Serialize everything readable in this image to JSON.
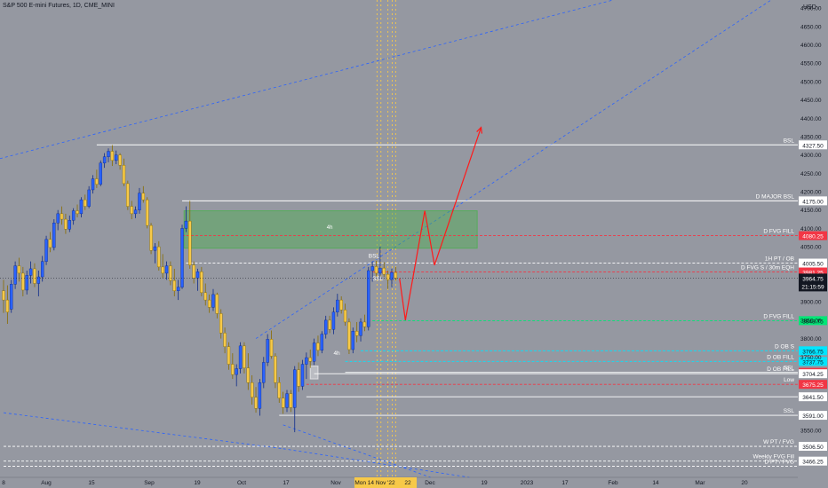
{
  "header": {
    "title": "S&P 500 E-mini Futures, 1D, CME_MINI"
  },
  "chart_data": {
    "type": "candlestick",
    "title": "S&P 500 E-mini Futures, 1D, CME_MINI",
    "currency_label": "USD",
    "ylim": [
      3422,
      4722
    ],
    "price_ticks": [
      4700,
      4650,
      4600,
      4550,
      4500,
      4450,
      4400,
      4350,
      4300,
      4250,
      4200,
      4150,
      4100,
      4050,
      3900,
      3850,
      3800,
      3750,
      3550
    ],
    "time_axis": {
      "labels": [
        "8",
        "Aug",
        "15",
        "Sep",
        "19",
        "Oct",
        "17",
        "Nov",
        "Dec",
        "19",
        "2023",
        "17",
        "Feb",
        "14",
        "Mar",
        "20"
      ],
      "highlighted_label": "Mon 14 Nov '22",
      "highlighted_suffix": "22"
    },
    "last_price": "3964.75",
    "countdown": "21:15:59",
    "candles": [
      {
        "o": 3930,
        "h": 3960,
        "l": 3870,
        "c": 3905
      },
      {
        "o": 3905,
        "h": 3945,
        "l": 3840,
        "c": 3872
      },
      {
        "o": 3880,
        "h": 3960,
        "l": 3870,
        "c": 3948
      },
      {
        "o": 3948,
        "h": 4010,
        "l": 3935,
        "c": 3998
      },
      {
        "o": 3998,
        "h": 4020,
        "l": 3955,
        "c": 3978
      },
      {
        "o": 3978,
        "h": 3995,
        "l": 3915,
        "c": 3932
      },
      {
        "o": 3932,
        "h": 3985,
        "l": 3920,
        "c": 3972
      },
      {
        "o": 3972,
        "h": 4010,
        "l": 3950,
        "c": 3990
      },
      {
        "o": 3990,
        "h": 4005,
        "l": 3940,
        "c": 3950
      },
      {
        "o": 3950,
        "h": 3985,
        "l": 3915,
        "c": 3968
      },
      {
        "o": 3968,
        "h": 4025,
        "l": 3955,
        "c": 4010
      },
      {
        "o": 4010,
        "h": 4080,
        "l": 4000,
        "c": 4070
      },
      {
        "o": 4070,
        "h": 4090,
        "l": 4035,
        "c": 4048
      },
      {
        "o": 4048,
        "h": 4125,
        "l": 4040,
        "c": 4115
      },
      {
        "o": 4115,
        "h": 4150,
        "l": 4095,
        "c": 4140
      },
      {
        "o": 4140,
        "h": 4160,
        "l": 4110,
        "c": 4125
      },
      {
        "o": 4125,
        "h": 4140,
        "l": 4085,
        "c": 4098
      },
      {
        "o": 4098,
        "h": 4135,
        "l": 4090,
        "c": 4122
      },
      {
        "o": 4122,
        "h": 4155,
        "l": 4110,
        "c": 4148
      },
      {
        "o": 4148,
        "h": 4165,
        "l": 4130,
        "c": 4140
      },
      {
        "o": 4140,
        "h": 4185,
        "l": 4130,
        "c": 4178
      },
      {
        "o": 4178,
        "h": 4192,
        "l": 4150,
        "c": 4160
      },
      {
        "o": 4160,
        "h": 4215,
        "l": 4155,
        "c": 4205
      },
      {
        "o": 4205,
        "h": 4245,
        "l": 4195,
        "c": 4235
      },
      {
        "o": 4235,
        "h": 4260,
        "l": 4210,
        "c": 4220
      },
      {
        "o": 4220,
        "h": 4285,
        "l": 4215,
        "c": 4278
      },
      {
        "o": 4278,
        "h": 4305,
        "l": 4265,
        "c": 4295
      },
      {
        "o": 4295,
        "h": 4318,
        "l": 4280,
        "c": 4310
      },
      {
        "o": 4310,
        "h": 4327,
        "l": 4270,
        "c": 4285
      },
      {
        "o": 4285,
        "h": 4312,
        "l": 4275,
        "c": 4300
      },
      {
        "o": 4300,
        "h": 4305,
        "l": 4260,
        "c": 4272
      },
      {
        "o": 4272,
        "h": 4290,
        "l": 4215,
        "c": 4222
      },
      {
        "o": 4222,
        "h": 4230,
        "l": 4150,
        "c": 4160
      },
      {
        "o": 4160,
        "h": 4175,
        "l": 4125,
        "c": 4140
      },
      {
        "o": 4140,
        "h": 4160,
        "l": 4128,
        "c": 4150
      },
      {
        "o": 4150,
        "h": 4210,
        "l": 4140,
        "c": 4196
      },
      {
        "o": 4196,
        "h": 4215,
        "l": 4170,
        "c": 4178
      },
      {
        "o": 4178,
        "h": 4185,
        "l": 4100,
        "c": 4108
      },
      {
        "o": 4108,
        "h": 4115,
        "l": 4030,
        "c": 4040
      },
      {
        "o": 4040,
        "h": 4060,
        "l": 4005,
        "c": 4050
      },
      {
        "o": 4050,
        "h": 4065,
        "l": 3985,
        "c": 3995
      },
      {
        "o": 3995,
        "h": 4030,
        "l": 3965,
        "c": 3978
      },
      {
        "o": 3978,
        "h": 4010,
        "l": 3960,
        "c": 3998
      },
      {
        "o": 3998,
        "h": 4010,
        "l": 3945,
        "c": 3958
      },
      {
        "o": 3958,
        "h": 3990,
        "l": 3915,
        "c": 3930
      },
      {
        "o": 3930,
        "h": 3960,
        "l": 3905,
        "c": 3940
      },
      {
        "o": 3940,
        "h": 4110,
        "l": 3935,
        "c": 4100
      },
      {
        "o": 4100,
        "h": 4160,
        "l": 4090,
        "c": 4120
      },
      {
        "o": 4120,
        "h": 4175,
        "l": 3990,
        "c": 4000
      },
      {
        "o": 4000,
        "h": 4010,
        "l": 3950,
        "c": 3965
      },
      {
        "o": 3965,
        "h": 3990,
        "l": 3930,
        "c": 3982
      },
      {
        "o": 3982,
        "h": 3995,
        "l": 3915,
        "c": 3925
      },
      {
        "o": 3925,
        "h": 3950,
        "l": 3890,
        "c": 3905
      },
      {
        "o": 3905,
        "h": 3920,
        "l": 3870,
        "c": 3885
      },
      {
        "o": 3885,
        "h": 3935,
        "l": 3875,
        "c": 3920
      },
      {
        "o": 3920,
        "h": 3925,
        "l": 3855,
        "c": 3868
      },
      {
        "o": 3868,
        "h": 3880,
        "l": 3800,
        "c": 3815
      },
      {
        "o": 3815,
        "h": 3830,
        "l": 3760,
        "c": 3778
      },
      {
        "o": 3778,
        "h": 3790,
        "l": 3715,
        "c": 3730
      },
      {
        "o": 3730,
        "h": 3760,
        "l": 3690,
        "c": 3702
      },
      {
        "o": 3702,
        "h": 3730,
        "l": 3670,
        "c": 3718
      },
      {
        "o": 3718,
        "h": 3790,
        "l": 3705,
        "c": 3780
      },
      {
        "o": 3780,
        "h": 3790,
        "l": 3705,
        "c": 3720
      },
      {
        "o": 3720,
        "h": 3760,
        "l": 3660,
        "c": 3680
      },
      {
        "o": 3680,
        "h": 3700,
        "l": 3620,
        "c": 3640
      },
      {
        "o": 3640,
        "h": 3668,
        "l": 3598,
        "c": 3610
      },
      {
        "o": 3610,
        "h": 3690,
        "l": 3590,
        "c": 3680
      },
      {
        "o": 3680,
        "h": 3750,
        "l": 3665,
        "c": 3735
      },
      {
        "o": 3735,
        "h": 3812,
        "l": 3725,
        "c": 3798
      },
      {
        "o": 3798,
        "h": 3822,
        "l": 3745,
        "c": 3752
      },
      {
        "o": 3752,
        "h": 3760,
        "l": 3665,
        "c": 3680
      },
      {
        "o": 3680,
        "h": 3695,
        "l": 3625,
        "c": 3638
      },
      {
        "o": 3638,
        "h": 3655,
        "l": 3595,
        "c": 3612
      },
      {
        "o": 3612,
        "h": 3660,
        "l": 3600,
        "c": 3650
      },
      {
        "o": 3650,
        "h": 3660,
        "l": 3600,
        "c": 3612
      },
      {
        "o": 3612,
        "h": 3725,
        "l": 3545,
        "c": 3715
      },
      {
        "o": 3715,
        "h": 3735,
        "l": 3655,
        "c": 3670
      },
      {
        "o": 3670,
        "h": 3742,
        "l": 3660,
        "c": 3730
      },
      {
        "o": 3730,
        "h": 3762,
        "l": 3690,
        "c": 3748
      },
      {
        "o": 3748,
        "h": 3770,
        "l": 3720,
        "c": 3738
      },
      {
        "o": 3738,
        "h": 3800,
        "l": 3728,
        "c": 3788
      },
      {
        "o": 3788,
        "h": 3808,
        "l": 3752,
        "c": 3768
      },
      {
        "o": 3768,
        "h": 3820,
        "l": 3760,
        "c": 3812
      },
      {
        "o": 3812,
        "h": 3862,
        "l": 3800,
        "c": 3850
      },
      {
        "o": 3850,
        "h": 3862,
        "l": 3815,
        "c": 3825
      },
      {
        "o": 3825,
        "h": 3885,
        "l": 3812,
        "c": 3872
      },
      {
        "o": 3872,
        "h": 3922,
        "l": 3860,
        "c": 3905
      },
      {
        "o": 3905,
        "h": 3915,
        "l": 3868,
        "c": 3878
      },
      {
        "o": 3878,
        "h": 3895,
        "l": 3835,
        "c": 3845
      },
      {
        "o": 3845,
        "h": 3855,
        "l": 3758,
        "c": 3770
      },
      {
        "o": 3770,
        "h": 3830,
        "l": 3760,
        "c": 3820
      },
      {
        "o": 3820,
        "h": 3845,
        "l": 3790,
        "c": 3808
      },
      {
        "o": 3808,
        "h": 3855,
        "l": 3792,
        "c": 3845
      },
      {
        "o": 3845,
        "h": 3865,
        "l": 3820,
        "c": 3832
      },
      {
        "o": 3832,
        "h": 3995,
        "l": 3822,
        "c": 3985
      },
      {
        "o": 3985,
        "h": 4010,
        "l": 3955,
        "c": 3996
      },
      {
        "o": 3996,
        "h": 4012,
        "l": 3970,
        "c": 3978
      },
      {
        "o": 3978,
        "h": 4050,
        "l": 3960,
        "c": 3992
      },
      {
        "o": 3992,
        "h": 4008,
        "l": 3968,
        "c": 3975
      },
      {
        "o": 3975,
        "h": 3985,
        "l": 3935,
        "c": 3960
      },
      {
        "o": 3960,
        "h": 3990,
        "l": 3940,
        "c": 3980
      },
      {
        "o": 3980,
        "h": 3995,
        "l": 3958,
        "c": 3964.75
      }
    ],
    "levels": [
      {
        "label": "BSL",
        "price": 4327.5,
        "value_label": "4327.50",
        "style": "solid",
        "color": "#ffffff",
        "tag_bg": "#ffffff",
        "tag_fg": "#131722"
      },
      {
        "label": "D MAJOR BSL",
        "price": 4175.0,
        "value_label": "4175.00",
        "style": "solid",
        "color": "#ffffff",
        "tag_bg": "#ffffff",
        "tag_fg": "#131722"
      },
      {
        "label": "D FVG FILL",
        "price": 4080.25,
        "value_label": "4080.25",
        "style": "dashed",
        "color": "#f23645",
        "tag_bg": "#f23645",
        "tag_fg": "#ffffff"
      },
      {
        "label": "1H PT / OB",
        "price": 4005.5,
        "value_label": "4005.50",
        "style": "dashed",
        "color": "#ffffff",
        "tag_bg": "#ffffff",
        "tag_fg": "#131722"
      },
      {
        "label": "D FVG S / 30m EQH",
        "price": 3981.25,
        "value_label": "3981.25",
        "style": "dashed",
        "color": "#f23645",
        "tag_bg": "#f23645",
        "tag_fg": "#ffffff"
      },
      {
        "label": "D FVG FILL",
        "price": 3848.75,
        "value_label": "3848.75",
        "style": "dashed",
        "color": "#00e676",
        "tag_bg": "#00e676",
        "tag_fg": "#131722"
      },
      {
        "label": "D OB S",
        "price": 3766.75,
        "value_label": "3766.75",
        "style": "dashed",
        "color": "#00e5ff",
        "tag_bg": "#00e5ff",
        "tag_fg": "#131722"
      },
      {
        "label": "D OB FILL",
        "price": 3737.75,
        "value_label": "3737.75",
        "style": "dashed",
        "color": "#00e5ff",
        "tag_bg": "#00e5ff",
        "tag_fg": "#131722"
      },
      {
        "label": "SSL",
        "price": 3708.0,
        "value_label": "3708.00",
        "style": "solid",
        "color": "#ffffff",
        "tag_bg": "#f23645",
        "tag_fg": "#ffffff"
      },
      {
        "label": "D OB FILL",
        "price": 3704.25,
        "value_label": "3704.25",
        "style": "solid",
        "color": "#ffffff",
        "tag_bg": "#ffffff",
        "tag_fg": "#131722"
      },
      {
        "label": "Low",
        "price": 3675.25,
        "value_label": "3675.25",
        "style": "dashed",
        "color": "#f23645",
        "tag_bg": "#f23645",
        "tag_fg": "#ffffff"
      },
      {
        "label": "",
        "price": 3641.5,
        "value_label": "3641.50",
        "style": "solid",
        "color": "#ffffff",
        "tag_bg": "#ffffff",
        "tag_fg": "#131722"
      },
      {
        "label": "SSL",
        "price": 3591.0,
        "value_label": "3591.00",
        "style": "solid",
        "color": "#ffffff",
        "tag_bg": "#ffffff",
        "tag_fg": "#131722"
      },
      {
        "label": "W PT / FVG",
        "price": 3506.5,
        "value_label": "3506.50",
        "style": "dashed",
        "color": "#ffffff",
        "tag_bg": "#ffffff",
        "tag_fg": "#131722"
      },
      {
        "label": "Weekly FVG Fill",
        "price": 3466.25,
        "value_label": "3466.25",
        "style": "dashed",
        "color": "#ffffff",
        "tag_bg": "#ffffff",
        "tag_fg": "#131722"
      },
      {
        "label": "D PT / FVG",
        "price": 3452.0,
        "value_label": "",
        "style": "dashed",
        "color": "#ffffff",
        "tag_bg": "#ffffff",
        "tag_fg": "#131722"
      }
    ],
    "zone": {
      "label": "4h",
      "top": 4148,
      "bottom": 4046
    },
    "chart_labels": [
      {
        "text": "BSL",
        "price": 4020,
        "bar": 94
      },
      {
        "text": "SSL",
        "price": 3958,
        "bar": 95
      },
      {
        "text": "4h",
        "price": 3755,
        "bar": 85
      }
    ],
    "projection_path": [
      {
        "bar": 102,
        "price": 3964
      },
      {
        "bar": 103.5,
        "price": 3850
      },
      {
        "bar": 108.5,
        "price": 4148
      },
      {
        "bar": 111,
        "price": 4000
      },
      {
        "bar": 123,
        "price": 4375
      }
    ]
  }
}
